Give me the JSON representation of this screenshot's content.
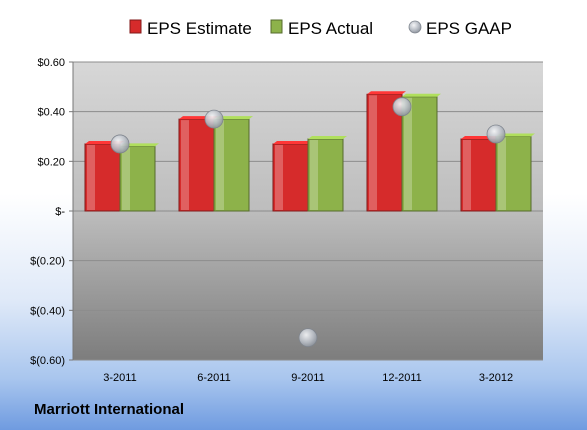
{
  "company": "Marriott International",
  "chart_data": {
    "type": "bar",
    "categories": [
      "3-2011",
      "6-2011",
      "9-2011",
      "12-2011",
      "3-2012"
    ],
    "series": [
      {
        "name": "EPS Estimate",
        "kind": "bar",
        "color": "#d62b2b",
        "values": [
          0.27,
          0.37,
          0.27,
          0.47,
          0.29
        ]
      },
      {
        "name": "EPS Actual",
        "kind": "bar",
        "color": "#8db24a",
        "values": [
          0.26,
          0.37,
          0.29,
          0.46,
          0.3
        ]
      },
      {
        "name": "EPS GAAP",
        "kind": "marker",
        "color": "#b7bcc4",
        "values": [
          0.27,
          0.37,
          -0.51,
          0.42,
          0.31
        ]
      }
    ],
    "yticks": [
      0.6,
      0.4,
      0.2,
      0,
      -0.2,
      -0.4,
      -0.6
    ],
    "ytick_labels": [
      "$0.60",
      "$0.40",
      "$0.20",
      "$-",
      "$(0.20)",
      "$(0.40)",
      "$(0.60)"
    ],
    "ylim": [
      -0.6,
      0.6
    ],
    "grid": true,
    "legend_position": "top"
  }
}
